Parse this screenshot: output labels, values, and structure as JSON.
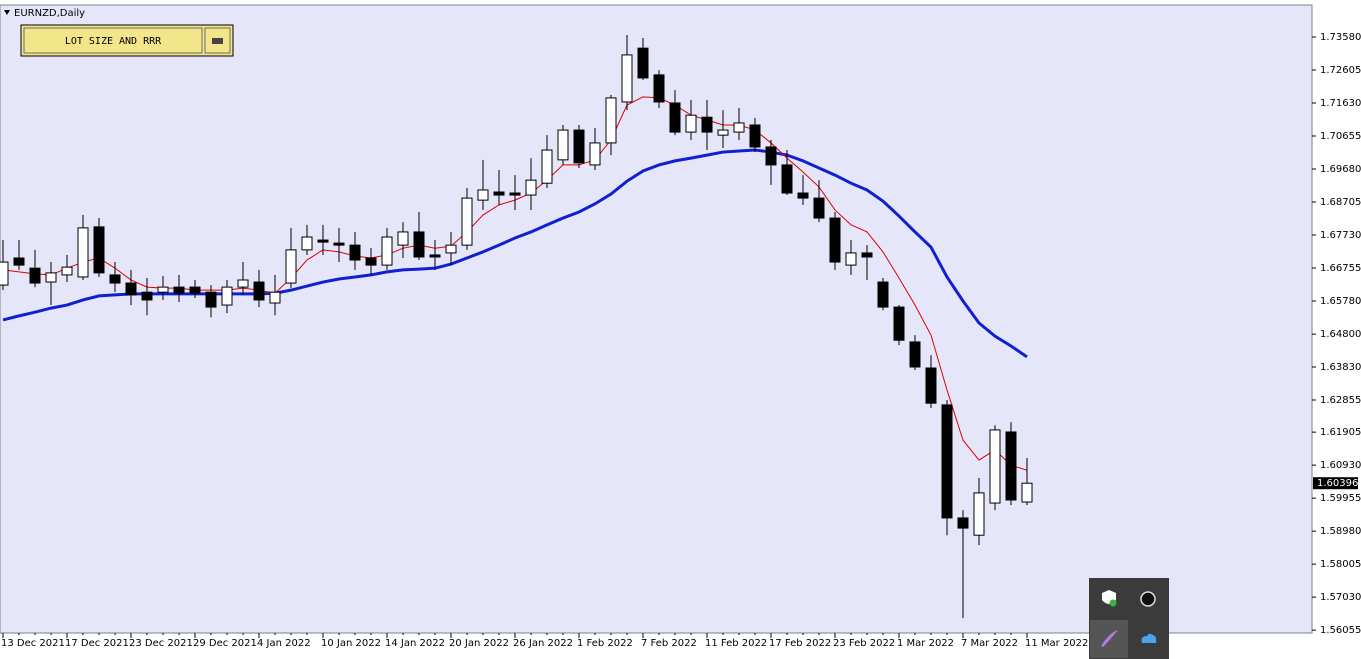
{
  "chart_data": {
    "type": "candlestick",
    "title": "EURNZD,Daily",
    "categories": [
      "13 Dec 2021",
      null,
      null,
      null,
      "17 Dec 2021",
      null,
      null,
      null,
      "23 Dec 2021",
      null,
      null,
      null,
      "29 Dec 2021",
      null,
      null,
      null,
      "4 Jan 2022",
      null,
      null,
      null,
      "10 Jan 2022",
      null,
      null,
      null,
      "14 Jan 2022",
      null,
      null,
      null,
      "20 Jan 2022",
      null,
      null,
      null,
      "26 Jan 2022",
      null,
      null,
      null,
      "1 Feb 2022",
      null,
      null,
      null,
      "7 Feb 2022",
      null,
      null,
      null,
      "11 Feb 2022",
      null,
      null,
      null,
      "17 Feb 2022",
      null,
      null,
      null,
      "23 Feb 2022",
      null,
      null,
      null,
      "1 Mar 2022",
      null,
      null,
      null,
      "7 Mar 2022",
      null,
      null,
      null,
      "11 Mar 2022"
    ],
    "open": [
      1.6625,
      1.6705,
      1.6675,
      1.6634,
      1.6655,
      1.6649,
      1.6797,
      1.6655,
      1.6631,
      1.6604,
      1.6604,
      1.6619,
      1.6619,
      1.6604,
      1.6566,
      1.6619,
      1.6634,
      1.6572,
      1.6631,
      1.6729,
      1.6758,
      1.6749,
      1.6743,
      1.6705,
      1.6684,
      1.6743,
      1.6782,
      1.6714,
      1.672,
      1.6743,
      1.6876,
      1.69,
      1.6897,
      1.6891,
      1.6926,
      1.6995,
      1.7083,
      1.698,
      1.7045,
      1.7166,
      1.7325,
      1.7246,
      1.7163,
      1.7077,
      1.7121,
      1.7068,
      1.7077,
      1.7098,
      1.7033,
      1.698,
      1.6897,
      1.6882,
      1.6823,
      1.6684,
      1.672,
      1.6634,
      1.656,
      1.6457,
      1.638,
      1.6271,
      1.5937,
      1.5886,
      1.5981,
      1.6191,
      1.5984
    ],
    "high": [
      1.6758,
      1.6758,
      1.6729,
      1.6693,
      1.6714,
      1.6832,
      1.6823,
      1.6693,
      1.667,
      1.6646,
      1.6652,
      1.6655,
      1.664,
      1.6625,
      1.664,
      1.6693,
      1.667,
      1.6655,
      1.6794,
      1.6803,
      1.6803,
      1.6794,
      1.6782,
      1.6734,
      1.6794,
      1.6811,
      1.6841,
      1.6758,
      1.6782,
      1.6912,
      1.6995,
      1.6965,
      1.695,
      1.7,
      1.7068,
      1.7098,
      1.7098,
      1.7089,
      1.7187,
      1.7364,
      1.7355,
      1.726,
      1.7201,
      1.7172,
      1.7172,
      1.7142,
      1.7148,
      1.7119,
      1.7054,
      1.7024,
      1.695,
      1.6935,
      1.6841,
      1.6758,
      1.6743,
      1.6646,
      1.6566,
      1.6477,
      1.6418,
      1.6285,
      1.596,
      1.6055,
      1.6211,
      1.622,
      1.6114
    ],
    "low": [
      1.661,
      1.667,
      1.6619,
      1.6566,
      1.6634,
      1.664,
      1.6649,
      1.6604,
      1.6566,
      1.6536,
      1.6581,
      1.6575,
      1.6587,
      1.653,
      1.6542,
      1.6596,
      1.656,
      1.6536,
      1.6616,
      1.6714,
      1.6714,
      1.6693,
      1.667,
      1.6655,
      1.667,
      1.6705,
      1.6699,
      1.667,
      1.6684,
      1.6729,
      1.6847,
      1.6862,
      1.6847,
      1.6847,
      1.6912,
      1.698,
      1.6971,
      1.6965,
      1.7009,
      1.7142,
      1.7231,
      1.7148,
      1.7068,
      1.7054,
      1.7024,
      1.703,
      1.7054,
      1.7018,
      1.6921,
      1.6891,
      1.6862,
      1.6811,
      1.667,
      1.6655,
      1.664,
      1.6551,
      1.6448,
      1.6374,
      1.6262,
      1.5886,
      1.5641,
      1.5857,
      1.596,
      1.5975,
      1.5975
    ],
    "close": [
      1.6693,
      1.6684,
      1.6631,
      1.6661,
      1.6678,
      1.6794,
      1.6661,
      1.6631,
      1.6596,
      1.6581,
      1.6619,
      1.6601,
      1.6601,
      1.656,
      1.6619,
      1.664,
      1.6581,
      1.6604,
      1.6729,
      1.6767,
      1.6752,
      1.6743,
      1.6699,
      1.6684,
      1.6767,
      1.6782,
      1.6708,
      1.6708,
      1.6743,
      1.6882,
      1.6906,
      1.6891,
      1.6891,
      1.6935,
      1.7024,
      1.7083,
      1.6986,
      1.7045,
      1.7178,
      1.7305,
      1.7237,
      1.7166,
      1.7077,
      1.7127,
      1.7077,
      1.7083,
      1.7104,
      1.7033,
      1.698,
      1.6897,
      1.6882,
      1.6823,
      1.6693,
      1.672,
      1.6708,
      1.656,
      1.6462,
      1.6383,
      1.6276,
      1.5937,
      1.5907,
      1.6011,
      1.6197,
      1.599,
      1.60396
    ],
    "up_color": "#ffffff",
    "down_color": "#000000",
    "lines": [
      {
        "color": "#1020d0",
        "values": [
          1.6522,
          1.6534,
          1.6545,
          1.6557,
          1.6566,
          1.6581,
          1.6593,
          1.6596,
          1.6599,
          1.6599,
          1.6599,
          1.6599,
          1.6599,
          1.6599,
          1.6599,
          1.6599,
          1.6599,
          1.6601,
          1.661,
          1.6622,
          1.6634,
          1.6643,
          1.6649,
          1.6655,
          1.6664,
          1.667,
          1.6672,
          1.6675,
          1.6687,
          1.6705,
          1.6723,
          1.6743,
          1.6764,
          1.6782,
          1.6803,
          1.6823,
          1.6841,
          1.6865,
          1.6894,
          1.6932,
          1.6962,
          1.698,
          1.6992,
          1.7,
          1.7009,
          1.7018,
          1.7021,
          1.7024,
          1.7018,
          1.7009,
          1.6992,
          1.6971,
          1.695,
          1.6926,
          1.6906,
          1.6873,
          1.6829,
          1.6782,
          1.6737,
          1.6649,
          1.6578,
          1.6513,
          1.6474,
          1.6445,
          1.6413
        ]
      },
      {
        "color": "#e00000",
        "values": [
          1.667,
          1.6664,
          1.6658,
          1.6655,
          1.6675,
          1.6693,
          1.6705,
          1.6675,
          1.664,
          1.6619,
          1.6616,
          1.6616,
          1.661,
          1.661,
          1.661,
          1.6616,
          1.661,
          1.6601,
          1.6646,
          1.6699,
          1.6729,
          1.6723,
          1.6711,
          1.6705,
          1.6714,
          1.6734,
          1.6743,
          1.6734,
          1.674,
          1.6782,
          1.6832,
          1.6862,
          1.6876,
          1.6897,
          1.6935,
          1.698,
          1.698,
          1.6995,
          1.7054,
          1.7157,
          1.7181,
          1.7178,
          1.7157,
          1.7127,
          1.7113,
          1.7098,
          1.7098,
          1.7083,
          1.7045,
          1.7,
          1.6959,
          1.6915,
          1.6847,
          1.6803,
          1.6782,
          1.6723,
          1.6646,
          1.6566,
          1.6477,
          1.6315,
          1.6167,
          1.6108,
          1.6138,
          1.6093,
          1.6078
        ]
      }
    ],
    "current_price": 1.60396,
    "ylim": [
      1.56,
      1.74525
    ],
    "yticks": [
      {
        "value": 1.7358,
        "label": "1.73580"
      },
      1.72605,
      {
        "value": 1.7163,
        "label": "1.71630"
      },
      1.70655,
      {
        "value": 1.6968,
        "label": "1.69680"
      },
      1.68705,
      {
        "value": 1.6773,
        "label": "1.67730"
      },
      1.66755,
      {
        "value": 1.6578,
        "label": "1.65780"
      },
      {
        "value": 1.648,
        "label": "1.64800"
      },
      {
        "value": 1.6383,
        "label": "1.63830"
      },
      1.62855,
      1.61905,
      {
        "value": 1.6093,
        "label": "1.60930"
      },
      1.59955,
      {
        "value": 1.5898,
        "label": "1.58980"
      },
      1.58005,
      {
        "value": 1.5703,
        "label": "1.57030"
      },
      1.56055
    ],
    "background": "#e6e6fa"
  },
  "toolbar": {
    "button_label": "LOT SIZE AND RRR"
  }
}
